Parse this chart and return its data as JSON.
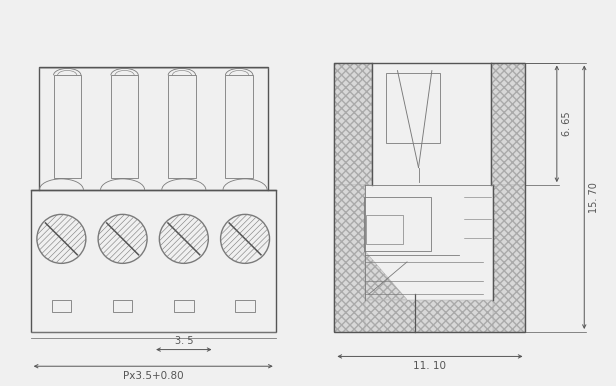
{
  "bg_color": "#f0f0f0",
  "lc": "#7a7a7a",
  "lcd": "#555555",
  "lc_dim": "#555555",
  "lw": 1.0,
  "lwt": 0.6,
  "lwd": 0.7,
  "dim_35": "3. 5",
  "dim_px": "Px3.5+0.80",
  "dim_1110": "11. 10",
  "dim_665": "6. 65",
  "dim_1570": "15. 70",
  "hatch_fc": "#d8d8d8",
  "n_ways": 4,
  "fs_dim": 7.0
}
